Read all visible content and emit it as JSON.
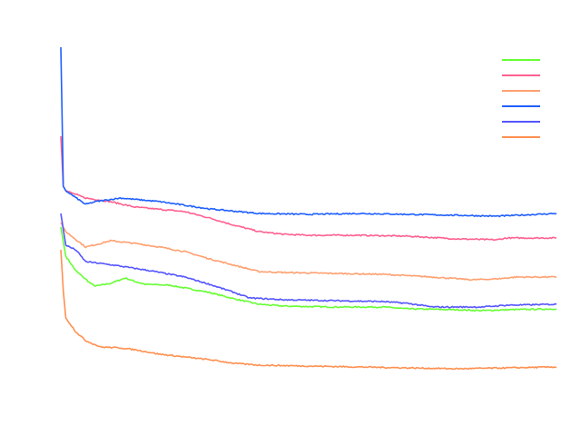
{
  "chart_data": {
    "type": "line",
    "title": "",
    "xlabel": "",
    "ylabel": "",
    "xlim": [
      0,
      100
    ],
    "ylim": [
      0,
      100
    ],
    "grid": false,
    "axes_visible": false,
    "legend": {
      "placement": "top-right",
      "labels_visible": false
    },
    "series": [
      {
        "color": "#66ff33",
        "x": [
          0,
          1,
          3,
          6,
          7,
          10,
          12,
          13,
          15,
          17,
          22,
          25,
          30,
          35,
          40,
          45,
          55,
          65,
          70,
          80,
          85,
          90,
          100
        ],
        "values": [
          47.5,
          39.5,
          35.5,
          32,
          31.25,
          32,
          33,
          33.5,
          32.5,
          31.75,
          31.5,
          30.75,
          29.5,
          27.75,
          26.25,
          25.75,
          25.5,
          25.5,
          25,
          24.75,
          24.5,
          24.75,
          25
        ]
      },
      {
        "color": "#ff6090",
        "x": [
          0,
          0.5,
          1,
          5,
          10,
          15,
          25,
          30,
          35,
          40,
          45,
          50,
          60,
          70,
          80,
          88,
          90,
          100
        ],
        "values": [
          72.5,
          58.75,
          57.5,
          55.5,
          54.5,
          53,
          51.75,
          50,
          48,
          46.25,
          45.5,
          45.25,
          45.25,
          45,
          44.25,
          44,
          44.5,
          44.5
        ]
      },
      {
        "color": "#ffa070",
        "x": [
          0,
          1,
          5,
          8,
          10,
          15,
          20,
          25,
          30,
          35,
          40,
          45,
          55,
          65,
          75,
          83,
          88,
          92,
          100
        ],
        "values": [
          48.75,
          46.25,
          42,
          43,
          43.75,
          43,
          42,
          40.75,
          38.75,
          37,
          35.25,
          35,
          34.75,
          34.5,
          33.75,
          33,
          33.25,
          33.75,
          33.75
        ]
      },
      {
        "color": "#1f5fff",
        "x": [
          0,
          0.5,
          1,
          5,
          7,
          12,
          20,
          30,
          40,
          50,
          60,
          70,
          80,
          88,
          100
        ],
        "values": [
          97,
          58.75,
          57.5,
          53.75,
          54.5,
          55.5,
          54.5,
          52.5,
          51.25,
          51,
          51.25,
          51,
          50.75,
          50.5,
          51.25
        ]
      },
      {
        "color": "#5555ff",
        "x": [
          0,
          1,
          3,
          5,
          8,
          12,
          18,
          25,
          30,
          35,
          38,
          45,
          55,
          65,
          70,
          75,
          80,
          85,
          90,
          100
        ],
        "values": [
          51.25,
          42.5,
          41.25,
          38,
          37.5,
          36.75,
          35.5,
          33.75,
          31.75,
          29.5,
          28,
          27.5,
          27.25,
          27,
          26.5,
          25.5,
          25.5,
          25.5,
          26,
          26.25
        ]
      },
      {
        "color": "#ff9050",
        "x": [
          0,
          0.5,
          1,
          3,
          5,
          8,
          12,
          15,
          20,
          30,
          35,
          40,
          50,
          60,
          70,
          80,
          90,
          100
        ],
        "values": [
          41.25,
          30,
          22.5,
          18.75,
          16.25,
          14.5,
          14.25,
          13.75,
          12.5,
          11,
          10,
          9.5,
          9.25,
          9,
          8.75,
          8.5,
          8.75,
          9
        ]
      }
    ]
  }
}
